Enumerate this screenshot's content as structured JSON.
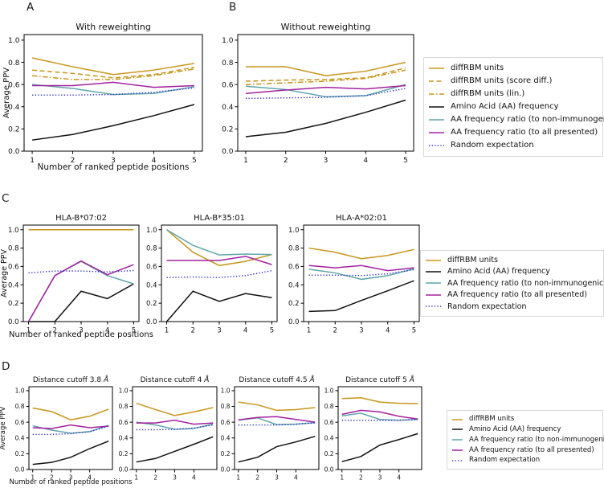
{
  "panels": [
    {
      "label": "A"
    },
    {
      "label": "B"
    },
    {
      "label": "C"
    },
    {
      "label": "D"
    }
  ],
  "styles": {
    "diffrbm": {
      "label": "diffRBM units",
      "color": "#C7951B",
      "dash": "solid"
    },
    "diffrbm_score": {
      "label": "diffRBM units (score diff.)",
      "color": "#C7951B",
      "dash": "dashed"
    },
    "diffrbm_lin": {
      "label": "diffRBM units (lin.)",
      "color": "#C7951B",
      "dash": "dashdot"
    },
    "aa_freq": {
      "label": "Amino Acid (AA) frequency",
      "color": "#111111",
      "dash": "solid"
    },
    "aa_ratio_nonimm": {
      "label": "AA frequency ratio (to non-immunogenic)",
      "color": "#5FA6AB",
      "dash": "solid"
    },
    "aa_ratio_all": {
      "label": "AA frequency ratio (to all presented)",
      "color": "#A320A0",
      "dash": "solid"
    },
    "random": {
      "label": "Random expectation",
      "color": "#3434C8",
      "dash": "dotted"
    }
  },
  "chart_data": [
    {
      "id": "with-reweighting",
      "panel": "A",
      "type": "line",
      "title": "With reweighting",
      "x": [
        1,
        2,
        3,
        4,
        5
      ],
      "xticks": [
        1,
        2,
        3,
        4,
        5
      ],
      "yticks": [
        0,
        0.2,
        0.4,
        0.6,
        0.8,
        1.0
      ],
      "ylim": [
        0,
        1.05
      ],
      "ylabel": "Average PPV",
      "xlabel": "Number of ranked peptide positions",
      "series": [
        {
          "name": "diffRBM units",
          "style": "diffrbm",
          "values": [
            0.84,
            0.76,
            0.69,
            0.73,
            0.79
          ]
        },
        {
          "name": "diffRBM units (score diff.)",
          "style": "diffrbm_score",
          "values": [
            0.73,
            0.7,
            0.66,
            0.69,
            0.755
          ]
        },
        {
          "name": "diffRBM units (lin.)",
          "style": "diffrbm_lin",
          "values": [
            0.68,
            0.645,
            0.645,
            0.68,
            0.74
          ]
        },
        {
          "name": "Amino Acid (AA) frequency",
          "style": "aa_freq",
          "values": [
            0.1,
            0.15,
            0.23,
            0.32,
            0.42
          ]
        },
        {
          "name": "AA frequency ratio (to non-immunogenic)",
          "style": "aa_ratio_nonimm",
          "values": [
            0.6,
            0.565,
            0.51,
            0.52,
            0.58
          ]
        },
        {
          "name": "AA frequency ratio (to all presented)",
          "style": "aa_ratio_all",
          "values": [
            0.59,
            0.59,
            0.62,
            0.575,
            0.59
          ]
        },
        {
          "name": "Random expectation",
          "style": "random",
          "values": [
            0.505,
            0.505,
            0.51,
            0.53,
            0.57
          ]
        }
      ]
    },
    {
      "id": "without-reweighting",
      "panel": "B",
      "type": "line",
      "title": "Without reweighting",
      "x": [
        1,
        2,
        3,
        4,
        5
      ],
      "xticks": [
        1,
        2,
        3,
        4,
        5
      ],
      "yticks": [
        0,
        0.2,
        0.4,
        0.6,
        0.8,
        1.0
      ],
      "ylim": [
        0,
        1.05
      ],
      "series": [
        {
          "name": "diffRBM units",
          "style": "diffrbm",
          "values": [
            0.76,
            0.76,
            0.68,
            0.72,
            0.8
          ]
        },
        {
          "name": "diffRBM units (score diff.)",
          "style": "diffrbm_score",
          "values": [
            0.63,
            0.64,
            0.645,
            0.66,
            0.75
          ]
        },
        {
          "name": "diffRBM units (lin.)",
          "style": "diffrbm_lin",
          "values": [
            0.6,
            0.615,
            0.63,
            0.655,
            0.73
          ]
        },
        {
          "name": "Amino Acid (AA) frequency",
          "style": "aa_freq",
          "values": [
            0.13,
            0.17,
            0.25,
            0.35,
            0.46
          ]
        },
        {
          "name": "AA frequency ratio (to non-immunogenic)",
          "style": "aa_ratio_nonimm",
          "values": [
            0.585,
            0.555,
            0.49,
            0.5,
            0.6
          ]
        },
        {
          "name": "AA frequency ratio (to all presented)",
          "style": "aa_ratio_all",
          "values": [
            0.52,
            0.55,
            0.575,
            0.56,
            0.59
          ]
        },
        {
          "name": "Random expectation",
          "style": "random",
          "values": [
            0.475,
            0.48,
            0.485,
            0.5,
            0.565
          ]
        }
      ]
    },
    {
      "id": "hla-b0702",
      "panel": "C",
      "type": "line",
      "title": "HLA-B*07:02",
      "x": [
        1,
        2,
        3,
        4,
        5
      ],
      "xticks": [
        1,
        2,
        3,
        4,
        5
      ],
      "yticks": [
        0,
        0.2,
        0.4,
        0.6,
        0.8,
        1.0
      ],
      "ylim": [
        0,
        1.05
      ],
      "ylabel": "Average PPV",
      "xlabel": "Number of ranked peptide positions",
      "series": [
        {
          "name": "diffRBM units",
          "style": "diffrbm",
          "values": [
            1.0,
            1.0,
            1.0,
            1.0,
            1.0
          ]
        },
        {
          "name": "Amino Acid (AA) frequency",
          "style": "aa_freq",
          "values": [
            0,
            0,
            0.33,
            0.25,
            0.41
          ]
        },
        {
          "name": "AA frequency ratio (to non-immunogenic)",
          "style": "aa_ratio_nonimm",
          "values": [
            0,
            0.5,
            0.655,
            0.5,
            0.41
          ]
        },
        {
          "name": "AA frequency ratio (to all presented)",
          "style": "aa_ratio_all",
          "values": [
            0,
            0.5,
            0.66,
            0.51,
            0.62
          ]
        },
        {
          "name": "Random expectation",
          "style": "random",
          "values": [
            0.53,
            0.55,
            0.55,
            0.54,
            0.555
          ]
        }
      ]
    },
    {
      "id": "hla-b3501",
      "panel": "C",
      "type": "line",
      "title": "HLA-B*35:01",
      "x": [
        1,
        2,
        3,
        4,
        5
      ],
      "xticks": [
        1,
        2,
        3,
        4,
        5
      ],
      "yticks": [
        0,
        0.2,
        0.4,
        0.6,
        0.8,
        1.0
      ],
      "ylim": [
        0,
        1.05
      ],
      "series": [
        {
          "name": "diffRBM units",
          "style": "diffrbm",
          "values": [
            1.0,
            0.755,
            0.61,
            0.655,
            0.73
          ]
        },
        {
          "name": "Amino Acid (AA) frequency",
          "style": "aa_freq",
          "values": [
            0,
            0.33,
            0.22,
            0.305,
            0.26
          ]
        },
        {
          "name": "AA frequency ratio (to non-immunogenic)",
          "style": "aa_ratio_nonimm",
          "values": [
            1.0,
            0.83,
            0.725,
            0.735,
            0.73
          ]
        },
        {
          "name": "AA frequency ratio (to all presented)",
          "style": "aa_ratio_all",
          "values": [
            0.665,
            0.665,
            0.665,
            0.71,
            0.62
          ]
        },
        {
          "name": "Random expectation",
          "style": "random",
          "values": [
            0.48,
            0.485,
            0.48,
            0.5,
            0.555
          ]
        }
      ]
    },
    {
      "id": "hla-a0201",
      "panel": "C",
      "type": "line",
      "title": "HLA-A*02:01",
      "x": [
        1,
        2,
        3,
        4,
        5
      ],
      "xticks": [
        1,
        2,
        3,
        4,
        5
      ],
      "yticks": [
        0,
        0.2,
        0.4,
        0.6,
        0.8,
        1.0
      ],
      "ylim": [
        0,
        1.05
      ],
      "series": [
        {
          "name": "diffRBM units",
          "style": "diffrbm",
          "values": [
            0.8,
            0.755,
            0.685,
            0.72,
            0.785
          ]
        },
        {
          "name": "Amino Acid (AA) frequency",
          "style": "aa_freq",
          "values": [
            0.11,
            0.12,
            0.23,
            0.335,
            0.445
          ]
        },
        {
          "name": "AA frequency ratio (to non-immunogenic)",
          "style": "aa_ratio_nonimm",
          "values": [
            0.57,
            0.53,
            0.46,
            0.5,
            0.575
          ]
        },
        {
          "name": "AA frequency ratio (to all presented)",
          "style": "aa_ratio_all",
          "values": [
            0.61,
            0.585,
            0.61,
            0.555,
            0.585
          ]
        },
        {
          "name": "Random expectation",
          "style": "random",
          "values": [
            0.505,
            0.505,
            0.5,
            0.52,
            0.565
          ]
        }
      ]
    },
    {
      "id": "cutoff-3-8",
      "panel": "D",
      "type": "line",
      "title": "Distance cutoff 3.8 Å",
      "x": [
        1,
        2,
        3,
        4,
        5
      ],
      "xticks": [
        1,
        2,
        3,
        4
      ],
      "yticks": [
        0,
        0.2,
        0.4,
        0.6,
        0.8,
        1.0
      ],
      "ylim": [
        0,
        1.05
      ],
      "ylabel": "Average PPV",
      "xlabel": "Number of ranked peptide positions",
      "series": [
        {
          "name": "diffRBM units",
          "style": "diffrbm",
          "values": [
            0.78,
            0.735,
            0.63,
            0.675,
            0.765
          ]
        },
        {
          "name": "Amino Acid (AA) frequency",
          "style": "aa_freq",
          "values": [
            0.065,
            0.09,
            0.155,
            0.265,
            0.36
          ]
        },
        {
          "name": "AA frequency ratio (to non-immunogenic)",
          "style": "aa_ratio_nonimm",
          "values": [
            0.555,
            0.5,
            0.46,
            0.48,
            0.56
          ]
        },
        {
          "name": "AA frequency ratio (to all presented)",
          "style": "aa_ratio_all",
          "values": [
            0.53,
            0.52,
            0.565,
            0.53,
            0.55
          ]
        },
        {
          "name": "Random expectation",
          "style": "random",
          "values": [
            0.445,
            0.445,
            0.455,
            0.48,
            0.55
          ]
        }
      ]
    },
    {
      "id": "cutoff-4",
      "panel": "D",
      "type": "line",
      "title": "Distance cutoff 4 Å",
      "x": [
        1,
        2,
        3,
        4,
        5
      ],
      "xticks": [
        1,
        2,
        3,
        4
      ],
      "yticks": [
        0,
        0.2,
        0.4,
        0.6,
        0.8,
        1.0
      ],
      "ylim": [
        0,
        1.05
      ],
      "series": [
        {
          "name": "diffRBM units",
          "style": "diffrbm",
          "values": [
            0.84,
            0.76,
            0.685,
            0.73,
            0.785
          ]
        },
        {
          "name": "Amino Acid (AA) frequency",
          "style": "aa_freq",
          "values": [
            0.095,
            0.14,
            0.23,
            0.32,
            0.415
          ]
        },
        {
          "name": "AA frequency ratio (to non-immunogenic)",
          "style": "aa_ratio_nonimm",
          "values": [
            0.6,
            0.565,
            0.51,
            0.52,
            0.575
          ]
        },
        {
          "name": "AA frequency ratio (to all presented)",
          "style": "aa_ratio_all",
          "values": [
            0.59,
            0.59,
            0.625,
            0.575,
            0.59
          ]
        },
        {
          "name": "Random expectation",
          "style": "random",
          "values": [
            0.505,
            0.505,
            0.51,
            0.525,
            0.565
          ]
        }
      ]
    },
    {
      "id": "cutoff-4-5",
      "panel": "D",
      "type": "line",
      "title": "Distance cutoff 4.5 Å",
      "x": [
        1,
        2,
        3,
        4,
        5
      ],
      "xticks": [
        1,
        2,
        3,
        4
      ],
      "yticks": [
        0,
        0.2,
        0.4,
        0.6,
        0.8,
        1.0
      ],
      "ylim": [
        0,
        1.05
      ],
      "series": [
        {
          "name": "diffRBM units",
          "style": "diffrbm",
          "values": [
            0.855,
            0.82,
            0.75,
            0.76,
            0.785
          ]
        },
        {
          "name": "Amino Acid (AA) frequency",
          "style": "aa_freq",
          "values": [
            0.095,
            0.155,
            0.29,
            0.35,
            0.42
          ]
        },
        {
          "name": "AA frequency ratio (to non-immunogenic)",
          "style": "aa_ratio_nonimm",
          "values": [
            0.625,
            0.655,
            0.57,
            0.575,
            0.595
          ]
        },
        {
          "name": "AA frequency ratio (to all presented)",
          "style": "aa_ratio_all",
          "values": [
            0.63,
            0.66,
            0.67,
            0.635,
            0.6
          ]
        },
        {
          "name": "Random expectation",
          "style": "random",
          "values": [
            0.565,
            0.565,
            0.565,
            0.575,
            0.59
          ]
        }
      ]
    },
    {
      "id": "cutoff-5",
      "panel": "D",
      "type": "line",
      "title": "Distance cutoff 5 Å",
      "x": [
        1,
        2,
        3,
        4,
        5
      ],
      "xticks": [
        1,
        2,
        3,
        4
      ],
      "yticks": [
        0,
        0.2,
        0.4,
        0.6,
        0.8,
        1.0
      ],
      "ylim": [
        0,
        1.05
      ],
      "series": [
        {
          "name": "diffRBM units",
          "style": "diffrbm",
          "values": [
            0.9,
            0.91,
            0.855,
            0.84,
            0.835
          ]
        },
        {
          "name": "Amino Acid (AA) frequency",
          "style": "aa_freq",
          "values": [
            0.1,
            0.165,
            0.31,
            0.38,
            0.455
          ]
        },
        {
          "name": "AA frequency ratio (to non-immunogenic)",
          "style": "aa_ratio_nonimm",
          "values": [
            0.68,
            0.715,
            0.635,
            0.625,
            0.635
          ]
        },
        {
          "name": "AA frequency ratio (to all presented)",
          "style": "aa_ratio_all",
          "values": [
            0.7,
            0.75,
            0.73,
            0.675,
            0.64
          ]
        },
        {
          "name": "Random expectation",
          "style": "random",
          "values": [
            0.625,
            0.625,
            0.625,
            0.625,
            0.635
          ]
        }
      ]
    }
  ],
  "legends": [
    {
      "panel": "ab",
      "entries": [
        "diffrbm",
        "diffrbm_score",
        "diffrbm_lin",
        "aa_freq",
        "aa_ratio_nonimm",
        "aa_ratio_all",
        "random"
      ]
    },
    {
      "panel": "c",
      "entries": [
        "diffrbm",
        "aa_freq",
        "aa_ratio_nonimm",
        "aa_ratio_all",
        "random"
      ]
    },
    {
      "panel": "d",
      "entries": [
        "diffrbm",
        "aa_freq",
        "aa_ratio_nonimm",
        "aa_ratio_all",
        "random"
      ]
    }
  ]
}
